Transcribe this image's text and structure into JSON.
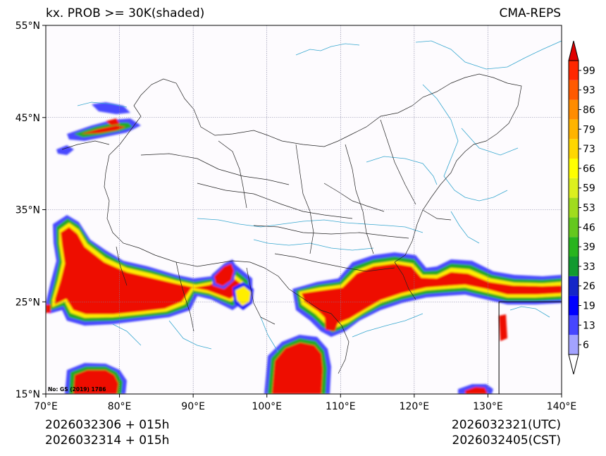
{
  "header": {
    "title": "kx. PROB >= 30K(shaded)",
    "model": "CMA-REPS"
  },
  "footer": {
    "init_line1": "2026032306  +  015h",
    "init_line2": "2026032314  +  015h",
    "valid_utc": "2026032321(UTC)",
    "valid_cst": "2026032405(CST)"
  },
  "map": {
    "lon_range": [
      70,
      140
    ],
    "lat_range": [
      15,
      55
    ],
    "lon_ticks": [
      {
        "value": 70,
        "label": "70°E"
      },
      {
        "value": 80,
        "label": "80°E"
      },
      {
        "value": 90,
        "label": "90°E"
      },
      {
        "value": 100,
        "label": "100°E"
      },
      {
        "value": 110,
        "label": "110°E"
      },
      {
        "value": 120,
        "label": "120°E"
      },
      {
        "value": 130,
        "label": "130°E"
      },
      {
        "value": 140,
        "label": "140°E"
      }
    ],
    "lat_ticks": [
      {
        "value": 55,
        "label": "55°N"
      },
      {
        "value": 45,
        "label": "45°N"
      },
      {
        "value": 35,
        "label": "35°N"
      },
      {
        "value": 25,
        "label": "25°N"
      },
      {
        "value": 15,
        "label": "15°N"
      }
    ],
    "review_number": "No: GS (2019) 1786",
    "inset_corner": {
      "lon": 131.5,
      "lat": 25
    }
  },
  "colorbar": {
    "levels": [
      "6",
      "13",
      "19",
      "26",
      "33",
      "39",
      "46",
      "53",
      "59",
      "66",
      "73",
      "79",
      "86",
      "93",
      "99"
    ],
    "colors": [
      "#a3a3ff",
      "#4646ff",
      "#0000ff",
      "#1426c8",
      "#129a30",
      "#28b41e",
      "#64c81e",
      "#a0dc1e",
      "#dcf01e",
      "#ffff00",
      "#ffd700",
      "#ffb400",
      "#ff8c00",
      "#ff5a00",
      "#ff2800"
    ],
    "under_color": "#ffffff",
    "over_color": "#e00000"
  },
  "colors": {
    "high": "#ee1100",
    "orange": "#ff8800",
    "yellow": "#ffee00",
    "green": "#22aa22",
    "blue": "#2222ff",
    "light_blue": "#8888ff",
    "river": "#36a7cf",
    "border": "#222222",
    "grid": "#8080a0",
    "plot_bg": "#fdfbfe"
  }
}
